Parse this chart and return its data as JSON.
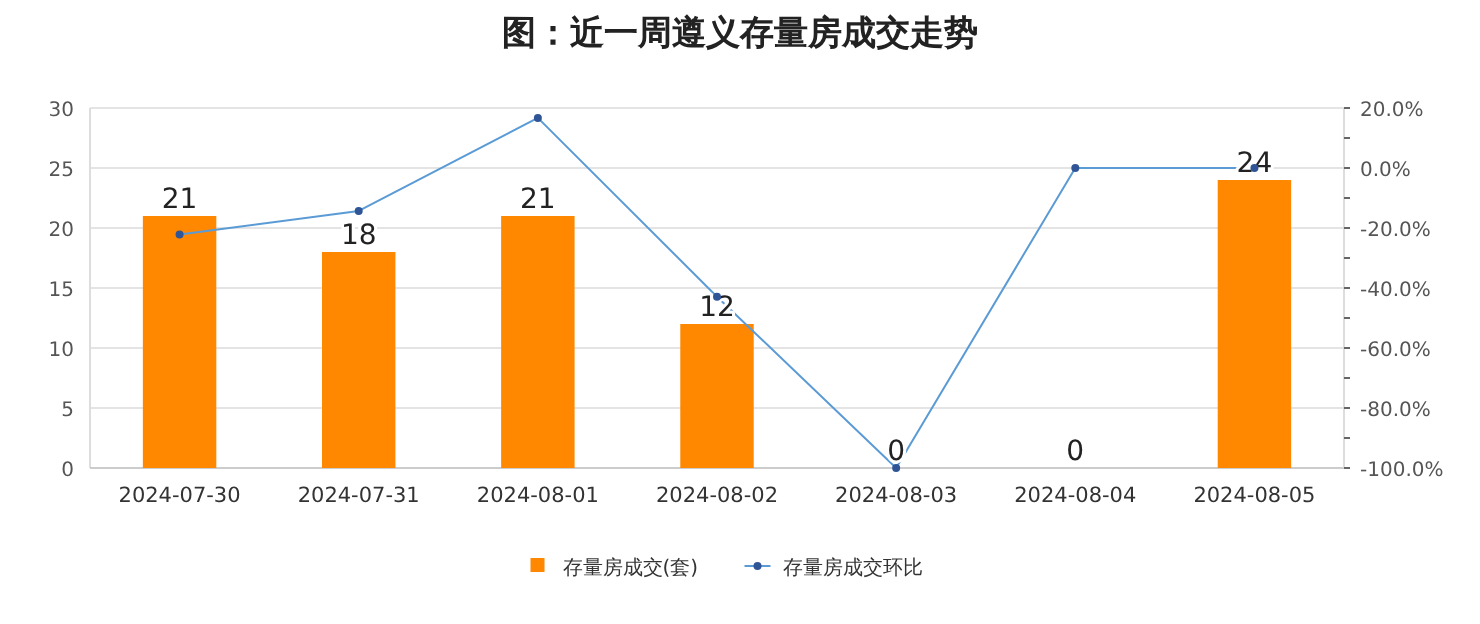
{
  "chart_data": {
    "type": "bar",
    "title": "图：近一周遵义存量房成交走势",
    "categories": [
      "2024-07-30",
      "2024-07-31",
      "2024-08-01",
      "2024-08-02",
      "2024-08-03",
      "2024-08-04",
      "2024-08-05"
    ],
    "series": [
      {
        "name": "存量房成交(套)",
        "color": "#ff8800",
        "values": [
          21,
          18,
          21,
          12,
          0,
          0,
          24
        ],
        "value_labels": [
          "21",
          "18",
          "21",
          "12",
          "0",
          "0",
          "24"
        ]
      },
      {
        "name": "存量房成交环比",
        "type": "line",
        "axis": "y2",
        "color": "#5b9bd5",
        "marker": "circle",
        "values": [
          -22.2,
          -14.3,
          16.7,
          -42.9,
          -100,
          0,
          0
        ]
      }
    ],
    "ylim": [
      0,
      30
    ],
    "yticks": [
      0,
      5,
      10,
      15,
      20,
      25,
      30
    ],
    "y2lim": [
      -100,
      20
    ],
    "y2ticks": [
      {
        "value": -100,
        "label": "-100.0%"
      },
      {
        "value": -90,
        "label": null
      },
      {
        "value": -80,
        "label": "-80.0%"
      },
      {
        "value": -70,
        "label": null
      },
      {
        "value": -60,
        "label": "-60.0%"
      },
      {
        "value": -50,
        "label": null
      },
      {
        "value": -40,
        "label": "-40.0%"
      },
      {
        "value": -30,
        "label": null
      },
      {
        "value": -20,
        "label": "-20.0%"
      },
      {
        "value": -10,
        "label": null
      },
      {
        "value": 0,
        "label": "0.0%"
      },
      {
        "value": 10,
        "label": null
      },
      {
        "value": 20,
        "label": "20.0%"
      }
    ],
    "grid": "y",
    "legend": "bottom"
  }
}
